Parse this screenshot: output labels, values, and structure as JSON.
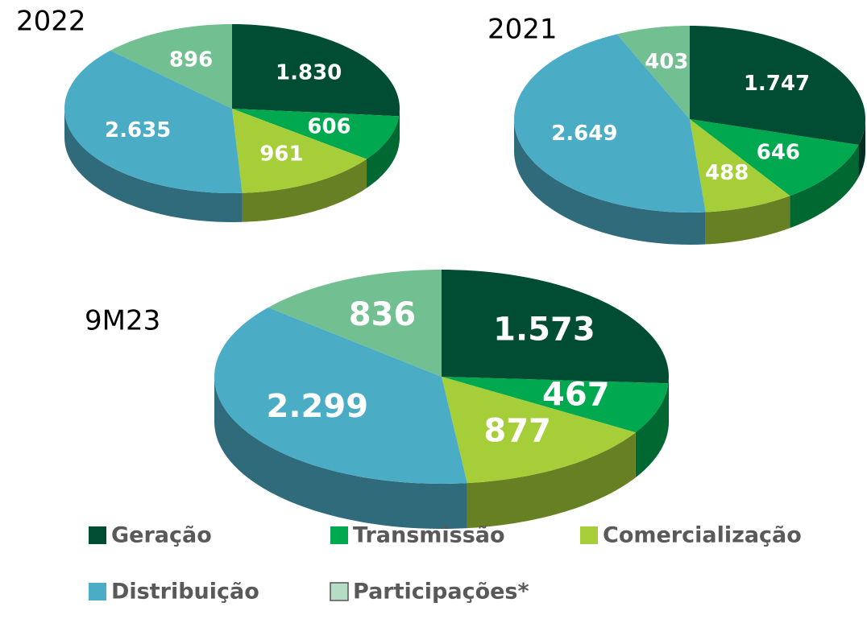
{
  "chart_data": [
    {
      "type": "pie3d",
      "title": "2022",
      "categories": [
        "Geração",
        "Transmissão",
        "Comercialização",
        "Distribuição",
        "Participações*"
      ],
      "values": [
        1830,
        606,
        961,
        2635,
        896
      ],
      "value_labels": [
        "1.830",
        "606",
        "961",
        "2.635",
        "896"
      ],
      "colors": [
        "#004d33",
        "#00a84f",
        "#a6ce39",
        "#4bacc6",
        "#72bf91"
      ]
    },
    {
      "type": "pie3d",
      "title": "2021",
      "categories": [
        "Geração",
        "Transmissão",
        "Comercialização",
        "Distribuição",
        "Participações*"
      ],
      "values": [
        1747,
        646,
        488,
        2649,
        403
      ],
      "value_labels": [
        "1.747",
        "646",
        "488",
        "2.649",
        "403"
      ],
      "colors": [
        "#004d33",
        "#00a84f",
        "#a6ce39",
        "#4bacc6",
        "#72bf91"
      ]
    },
    {
      "type": "pie3d",
      "title": "9M23",
      "categories": [
        "Geração",
        "Transmissão",
        "Comercialização",
        "Distribuição",
        "Participações*"
      ],
      "values": [
        1573,
        467,
        877,
        2299,
        836
      ],
      "value_labels": [
        "1.573",
        "467",
        "877",
        "2.299",
        "836"
      ],
      "colors": [
        "#004d33",
        "#00a84f",
        "#a6ce39",
        "#4bacc6",
        "#72bf91"
      ]
    }
  ]
}
